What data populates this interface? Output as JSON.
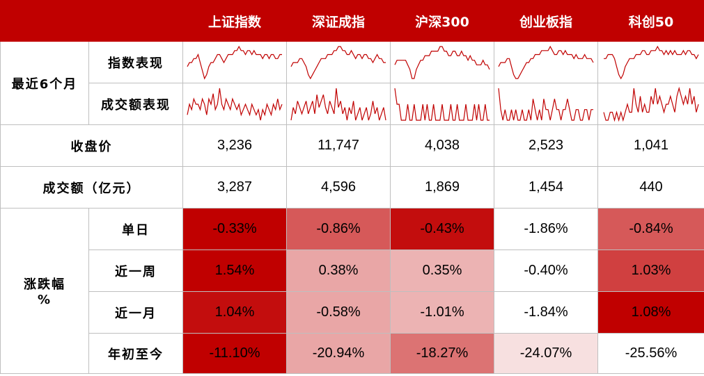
{
  "header": {
    "columns": [
      "上证指数",
      "深证成指",
      "沪深300",
      "创业板指",
      "科创50"
    ]
  },
  "rows": {
    "recent_label": "最近6个月",
    "index_perf_label": "指数表现",
    "volume_perf_label": "成交额表现",
    "close_label": "收盘价",
    "turnover_label": "成交额（亿元）",
    "change_label_line1": "涨跌幅",
    "change_label_line2": "%"
  },
  "close": [
    "3,236",
    "11,747",
    "4,038",
    "2,523",
    "1,041"
  ],
  "turnover": [
    "3,287",
    "4,596",
    "1,869",
    "1,454",
    "440"
  ],
  "changes": [
    {
      "label": "单日",
      "values": [
        "-0.33%",
        "-0.86%",
        "-0.43%",
        "-1.86%",
        "-0.84%"
      ],
      "bg_level": [
        1.0,
        0.65,
        0.95,
        0.0,
        0.65
      ]
    },
    {
      "label": "近一周",
      "values": [
        "1.54%",
        "0.38%",
        "0.35%",
        "-0.40%",
        "1.03%"
      ],
      "bg_level": [
        1.0,
        0.35,
        0.3,
        0.0,
        0.75
      ]
    },
    {
      "label": "近一月",
      "values": [
        "1.04%",
        "-0.58%",
        "-1.01%",
        "-1.84%",
        "1.08%"
      ],
      "bg_level": [
        0.95,
        0.35,
        0.3,
        0.0,
        1.0
      ]
    },
    {
      "label": "年初至今",
      "values": [
        "-11.10%",
        "-20.94%",
        "-18.27%",
        "-24.07%",
        "-25.56%"
      ],
      "bg_level": [
        1.0,
        0.35,
        0.55,
        0.12,
        0.0
      ]
    }
  ],
  "colors": {
    "header_bg": "#c00000",
    "line": "#c00000",
    "heat_max": "#c00000",
    "heat_min": "#ffffff"
  },
  "chart_data": {
    "type": "table",
    "columns": [
      "上证指数",
      "深证成指",
      "沪深300",
      "创业板指",
      "科创50"
    ],
    "rows": [
      {
        "name": "收盘价",
        "values": [
          3236,
          11747,
          4038,
          2523,
          1041
        ]
      },
      {
        "name": "成交额（亿元）",
        "values": [
          3287,
          4596,
          1869,
          1454,
          440
        ]
      },
      {
        "name": "单日",
        "values": [
          -0.33,
          -0.86,
          -0.43,
          -1.86,
          -0.84
        ]
      },
      {
        "name": "近一周",
        "values": [
          1.54,
          0.38,
          0.35,
          -0.4,
          1.03
        ]
      },
      {
        "name": "近一月",
        "values": [
          1.04,
          -0.58,
          -1.01,
          -1.84,
          1.08
        ]
      },
      {
        "name": "年初至今",
        "values": [
          -11.1,
          -20.94,
          -18.27,
          -24.07,
          -25.56
        ]
      }
    ],
    "sparklines": {
      "index": [
        [
          6,
          5,
          5,
          4,
          4,
          3,
          5,
          7,
          9,
          8,
          6,
          5,
          5,
          4,
          3,
          3,
          4,
          5,
          4,
          3,
          3,
          3,
          2,
          2,
          1,
          2,
          2,
          3,
          2,
          2,
          3,
          2,
          3,
          3,
          3,
          4,
          3,
          3,
          4,
          3,
          3,
          4,
          4,
          3,
          3
        ],
        [
          6,
          5,
          5,
          5,
          4,
          4,
          5,
          6,
          8,
          9,
          8,
          7,
          6,
          5,
          4,
          4,
          4,
          3,
          3,
          3,
          2,
          2,
          1,
          1,
          2,
          2,
          3,
          3,
          2,
          3,
          4,
          3,
          3,
          4,
          3,
          3,
          4,
          4,
          5,
          4,
          3,
          4,
          4,
          5,
          5
        ],
        [
          5,
          4,
          4,
          4,
          4,
          4,
          5,
          6,
          8,
          8,
          6,
          5,
          4,
          4,
          3,
          3,
          3,
          2,
          2,
          2,
          2,
          1,
          1,
          2,
          2,
          3,
          3,
          2,
          2,
          3,
          3,
          2,
          3,
          3,
          4,
          3,
          4,
          4,
          5,
          5,
          5,
          4,
          5,
          5,
          6
        ],
        [
          6,
          5,
          5,
          5,
          4,
          4,
          6,
          8,
          9,
          9,
          8,
          7,
          6,
          5,
          5,
          4,
          4,
          3,
          3,
          3,
          2,
          2,
          2,
          2,
          1,
          2,
          3,
          3,
          2,
          2,
          3,
          2,
          3,
          3,
          3,
          4,
          3,
          4,
          4,
          4,
          3,
          4,
          4,
          4,
          5
        ],
        [
          4,
          4,
          3,
          3,
          3,
          4,
          6,
          8,
          9,
          8,
          6,
          5,
          4,
          4,
          4,
          3,
          3,
          3,
          2,
          2,
          3,
          3,
          2,
          2,
          2,
          1,
          2,
          2,
          3,
          2,
          3,
          2,
          3,
          2,
          3,
          3,
          3,
          2,
          3,
          2,
          2,
          3,
          3,
          4,
          3
        ]
      ],
      "volume": [
        [
          6,
          4,
          5,
          3,
          4,
          4,
          5,
          3,
          4,
          6,
          3,
          4,
          2,
          5,
          4,
          1,
          4,
          5,
          3,
          4,
          5,
          3,
          4,
          5,
          4,
          6,
          5,
          4,
          5,
          6,
          4,
          5,
          6,
          5,
          7,
          5,
          6,
          4,
          5,
          6,
          4,
          5,
          3,
          5,
          4
        ],
        [
          7,
          5,
          6,
          4,
          5,
          6,
          5,
          4,
          6,
          5,
          4,
          6,
          3,
          5,
          4,
          3,
          5,
          6,
          4,
          5,
          6,
          2,
          5,
          4,
          6,
          5,
          7,
          5,
          6,
          4,
          7,
          6,
          5,
          7,
          6,
          5,
          7,
          6,
          4,
          6,
          5,
          7,
          6,
          5,
          7
        ],
        [
          4,
          5,
          5,
          6,
          6,
          6,
          5,
          6,
          6,
          5,
          6,
          6,
          6,
          5,
          6,
          5,
          6,
          6,
          5,
          6,
          6,
          6,
          5,
          6,
          6,
          6,
          5,
          6,
          6,
          5,
          6,
          6,
          6,
          5,
          6,
          6,
          6,
          5,
          6,
          5,
          6,
          6,
          5,
          6,
          6
        ],
        [
          3,
          5,
          6,
          5,
          6,
          6,
          5,
          6,
          5,
          6,
          6,
          5,
          6,
          6,
          5,
          6,
          4,
          5,
          6,
          5,
          6,
          4,
          5,
          5,
          6,
          5,
          4,
          5,
          5,
          6,
          5,
          5,
          4,
          5,
          6,
          6,
          5,
          5,
          6,
          6,
          5,
          5,
          6,
          5,
          5
        ],
        [
          5,
          6,
          6,
          5,
          5,
          6,
          5,
          6,
          5,
          6,
          5,
          4,
          5,
          5,
          2,
          4,
          5,
          3,
          5,
          4,
          5,
          5,
          3,
          4,
          2,
          4,
          3,
          4,
          5,
          4,
          4,
          3,
          4,
          5,
          3,
          2,
          3,
          4,
          3,
          4,
          2,
          4,
          3,
          5,
          4
        ]
      ]
    }
  }
}
